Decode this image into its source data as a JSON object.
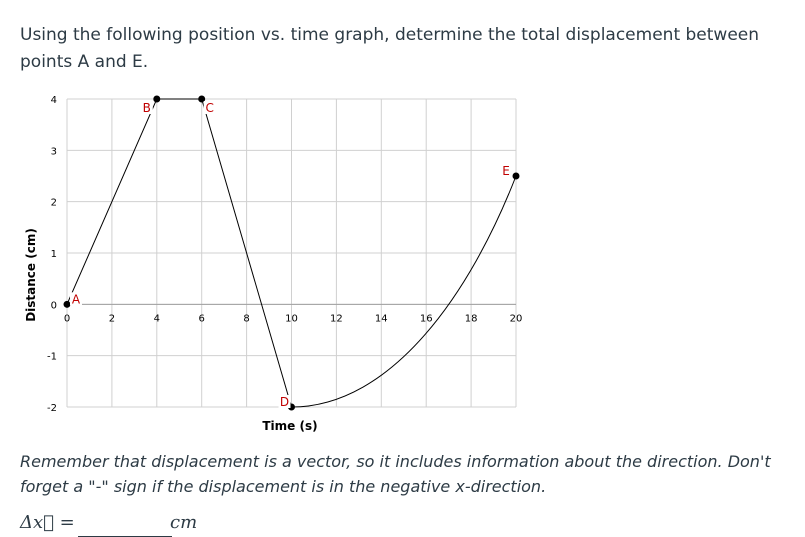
{
  "question": {
    "text": "Using the following position vs. time graph, determine the total displacement between points A and E."
  },
  "chart_data": {
    "type": "line",
    "xlabel": "Time (s)",
    "ylabel": "Distance (cm)",
    "xlim": [
      0,
      20
    ],
    "ylim": [
      -2,
      4
    ],
    "x_ticks": [
      "0",
      "2",
      "4",
      "6",
      "8",
      "10",
      "12",
      "14",
      "16",
      "18",
      "20"
    ],
    "y_ticks": [
      "4",
      "3",
      "2",
      "1",
      "0",
      "-1",
      "-2"
    ],
    "grid": true,
    "segments": [
      {
        "from": "A",
        "to": "B",
        "shape": "straight"
      },
      {
        "from": "B",
        "to": "C",
        "shape": "straight"
      },
      {
        "from": "C",
        "to": "D",
        "shape": "straight"
      },
      {
        "from": "D",
        "to": "E",
        "shape": "curve"
      }
    ],
    "points": [
      {
        "label": "A",
        "x": 0,
        "y": 0
      },
      {
        "label": "B",
        "x": 4,
        "y": 4
      },
      {
        "label": "C",
        "x": 6,
        "y": 4
      },
      {
        "label": "D",
        "x": 10,
        "y": -2
      },
      {
        "label": "E",
        "x": 20,
        "y": 2.5
      }
    ]
  },
  "note": {
    "text": "Remember that displacement is a vector, so it includes information about the direction.  Don't forget a \"-\" sign if the displacement is in the negative x-direction."
  },
  "answer": {
    "symbol": "Δx⃗ =",
    "value": "",
    "unit": "cm"
  }
}
